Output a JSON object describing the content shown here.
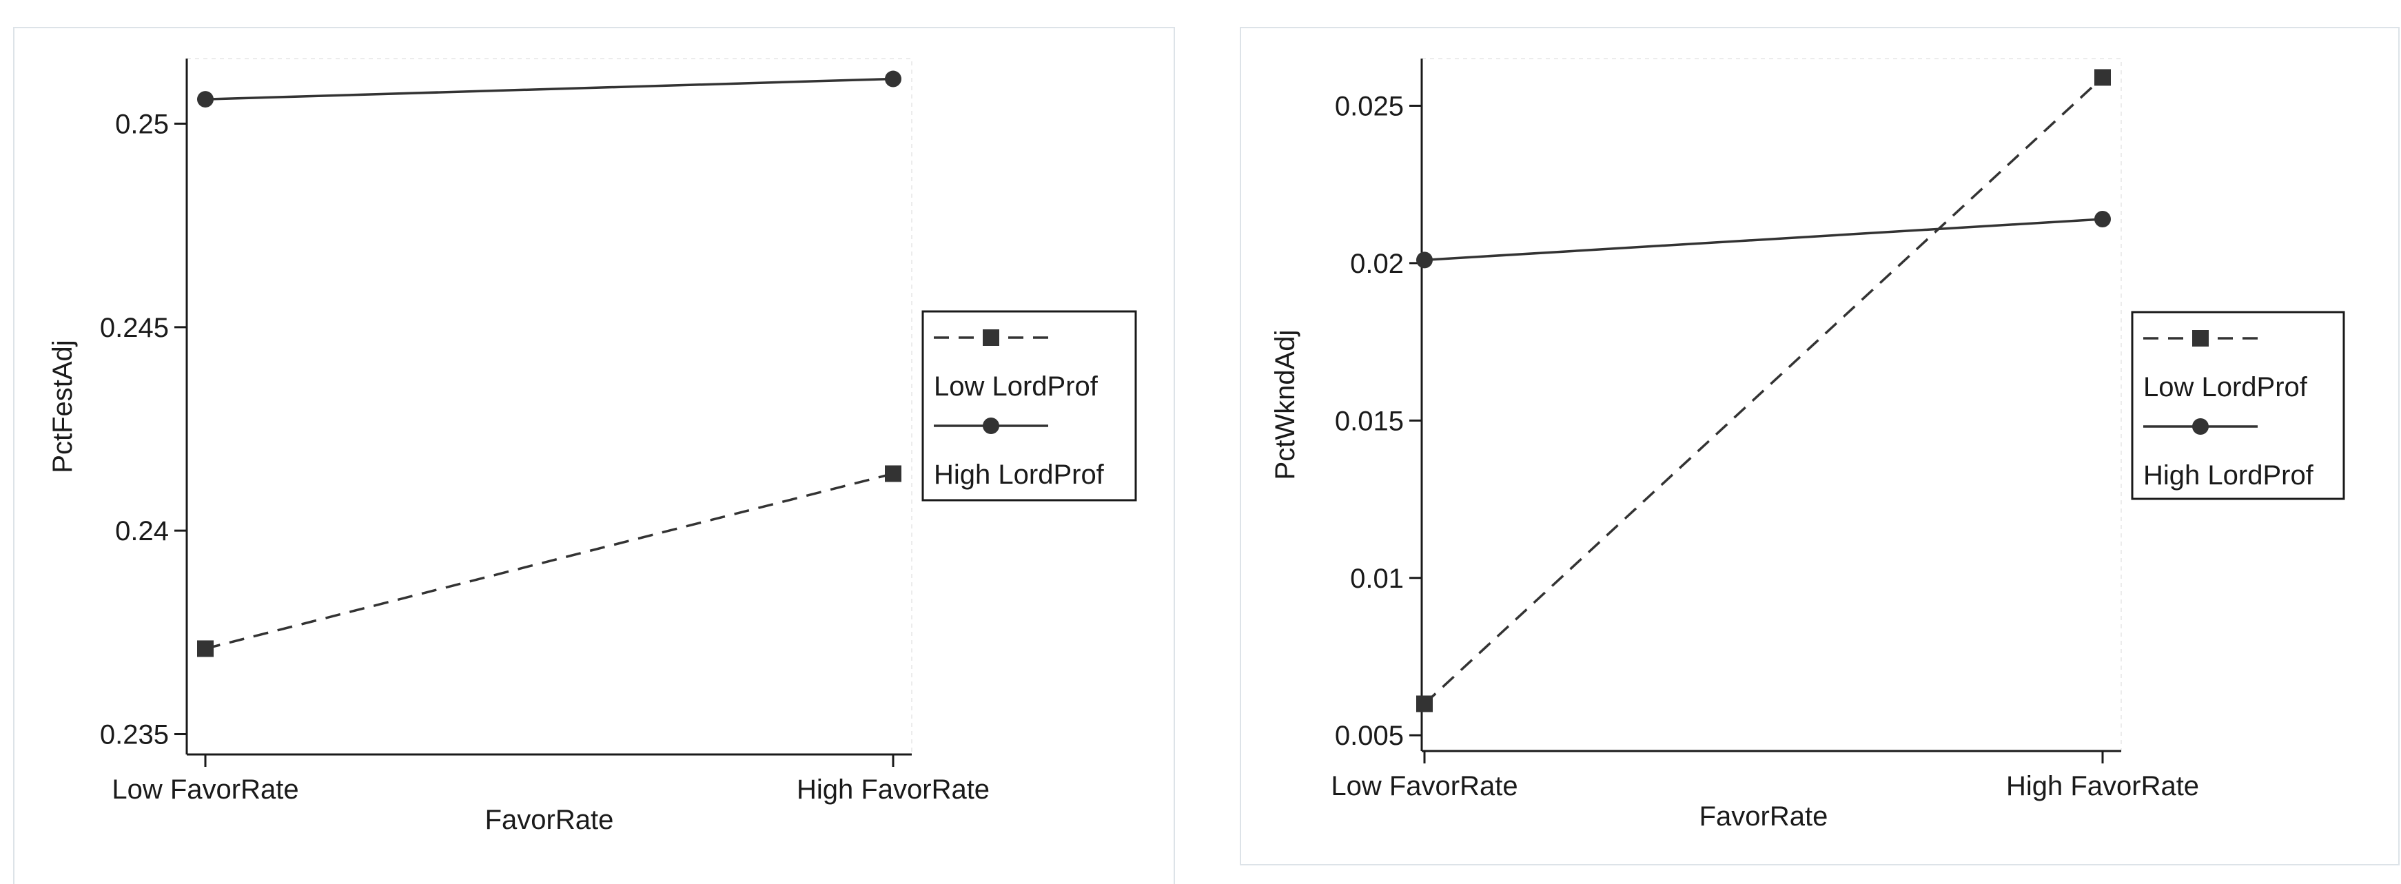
{
  "chart_data": [
    {
      "type": "line",
      "title": "",
      "xlabel": "FavorRate",
      "ylabel": "PctFestAdj",
      "categories": [
        "Low FavorRate",
        "High FavorRate"
      ],
      "ylim": [
        0.2345,
        0.2516
      ],
      "yticks": [
        0.235,
        0.24,
        0.245,
        0.25
      ],
      "ytick_labels": [
        "0.235",
        "0.24",
        "0.245",
        "0.25"
      ],
      "legend_position": "right",
      "grid": false,
      "series": [
        {
          "name": "Low LordProf",
          "values": [
            0.2371,
            0.2414
          ],
          "line_style": "dashed",
          "marker": "square",
          "color": "#333333"
        },
        {
          "name": "High LordProf",
          "values": [
            0.2506,
            0.2511
          ],
          "line_style": "solid",
          "marker": "circle",
          "color": "#333333"
        }
      ]
    },
    {
      "type": "line",
      "title": "",
      "xlabel": "FavorRate",
      "ylabel": "PctWkndAdj",
      "categories": [
        "Low FavorRate",
        "High FavorRate"
      ],
      "ylim": [
        0.0045,
        0.0265
      ],
      "yticks": [
        0.005,
        0.01,
        0.015,
        0.02,
        0.025
      ],
      "ytick_labels": [
        "0.005",
        "0.01",
        "0.015",
        "0.02",
        "0.025"
      ],
      "legend_position": "right",
      "grid": false,
      "series": [
        {
          "name": "Low LordProf",
          "values": [
            0.006,
            0.0259
          ],
          "line_style": "dashed",
          "marker": "square",
          "color": "#333333"
        },
        {
          "name": "High LordProf",
          "values": [
            0.0201,
            0.0214
          ],
          "line_style": "solid",
          "marker": "circle",
          "color": "#333333"
        }
      ]
    }
  ]
}
